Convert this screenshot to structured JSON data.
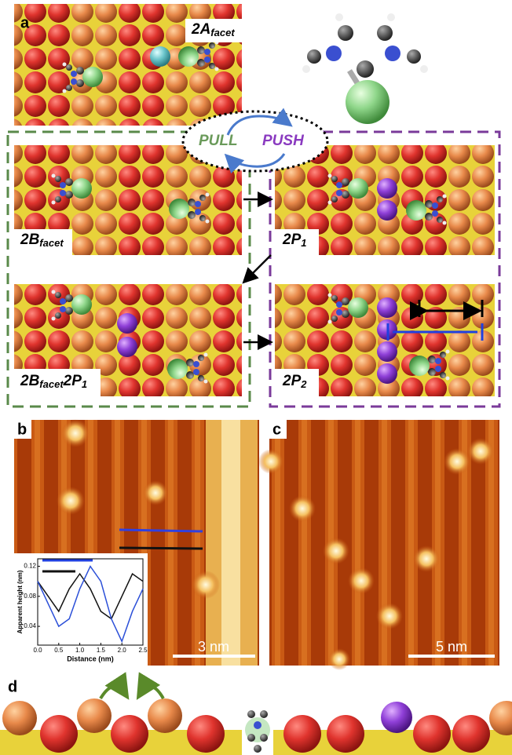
{
  "panels": {
    "a": "a",
    "b": "b",
    "c": "c",
    "d": "d"
  },
  "labels": {
    "a_top": {
      "main": "2A",
      "sub": "facet"
    },
    "b_facet": {
      "main": "2B",
      "sub": "facet"
    },
    "p1": {
      "main": "2P",
      "sub": "1"
    },
    "b_facet_p1": {
      "main": "2B",
      "sub": "facet",
      "main2": "2P",
      "sub2": "1"
    },
    "p2": {
      "main": "2P",
      "sub": "2"
    },
    "pull": "PULL",
    "push": "PUSH"
  },
  "scale_bars": {
    "b": "3 nm",
    "c": "5 nm"
  },
  "inset": {
    "ylabel": "Apparent height (nm)",
    "xlabel": "Distance (nm)",
    "xlim": [
      0,
      2.5
    ],
    "ylim": [
      0.015,
      0.13
    ],
    "xticks": [
      {
        "value": 0,
        "label": "0.0"
      },
      0.5,
      {
        "value": 1,
        "label": "1.0"
      },
      1.5,
      {
        "value": 2,
        "label": "2.0"
      },
      2.5
    ],
    "yticks": [
      0.04,
      0.08,
      0.12
    ],
    "x": [
      0,
      0.25,
      0.5,
      0.75,
      1.0,
      1.25,
      1.5,
      1.75,
      2.0,
      2.25,
      2.5
    ],
    "series": [
      {
        "color": "#111111",
        "values": [
          0.1,
          0.08,
          0.06,
          0.09,
          0.11,
          0.09,
          0.06,
          0.05,
          0.08,
          0.11,
          0.1
        ]
      },
      {
        "color": "#2b4fd8",
        "values": [
          0.1,
          0.07,
          0.04,
          0.05,
          0.09,
          0.12,
          0.1,
          0.05,
          0.02,
          0.06,
          0.09
        ]
      }
    ]
  }
}
